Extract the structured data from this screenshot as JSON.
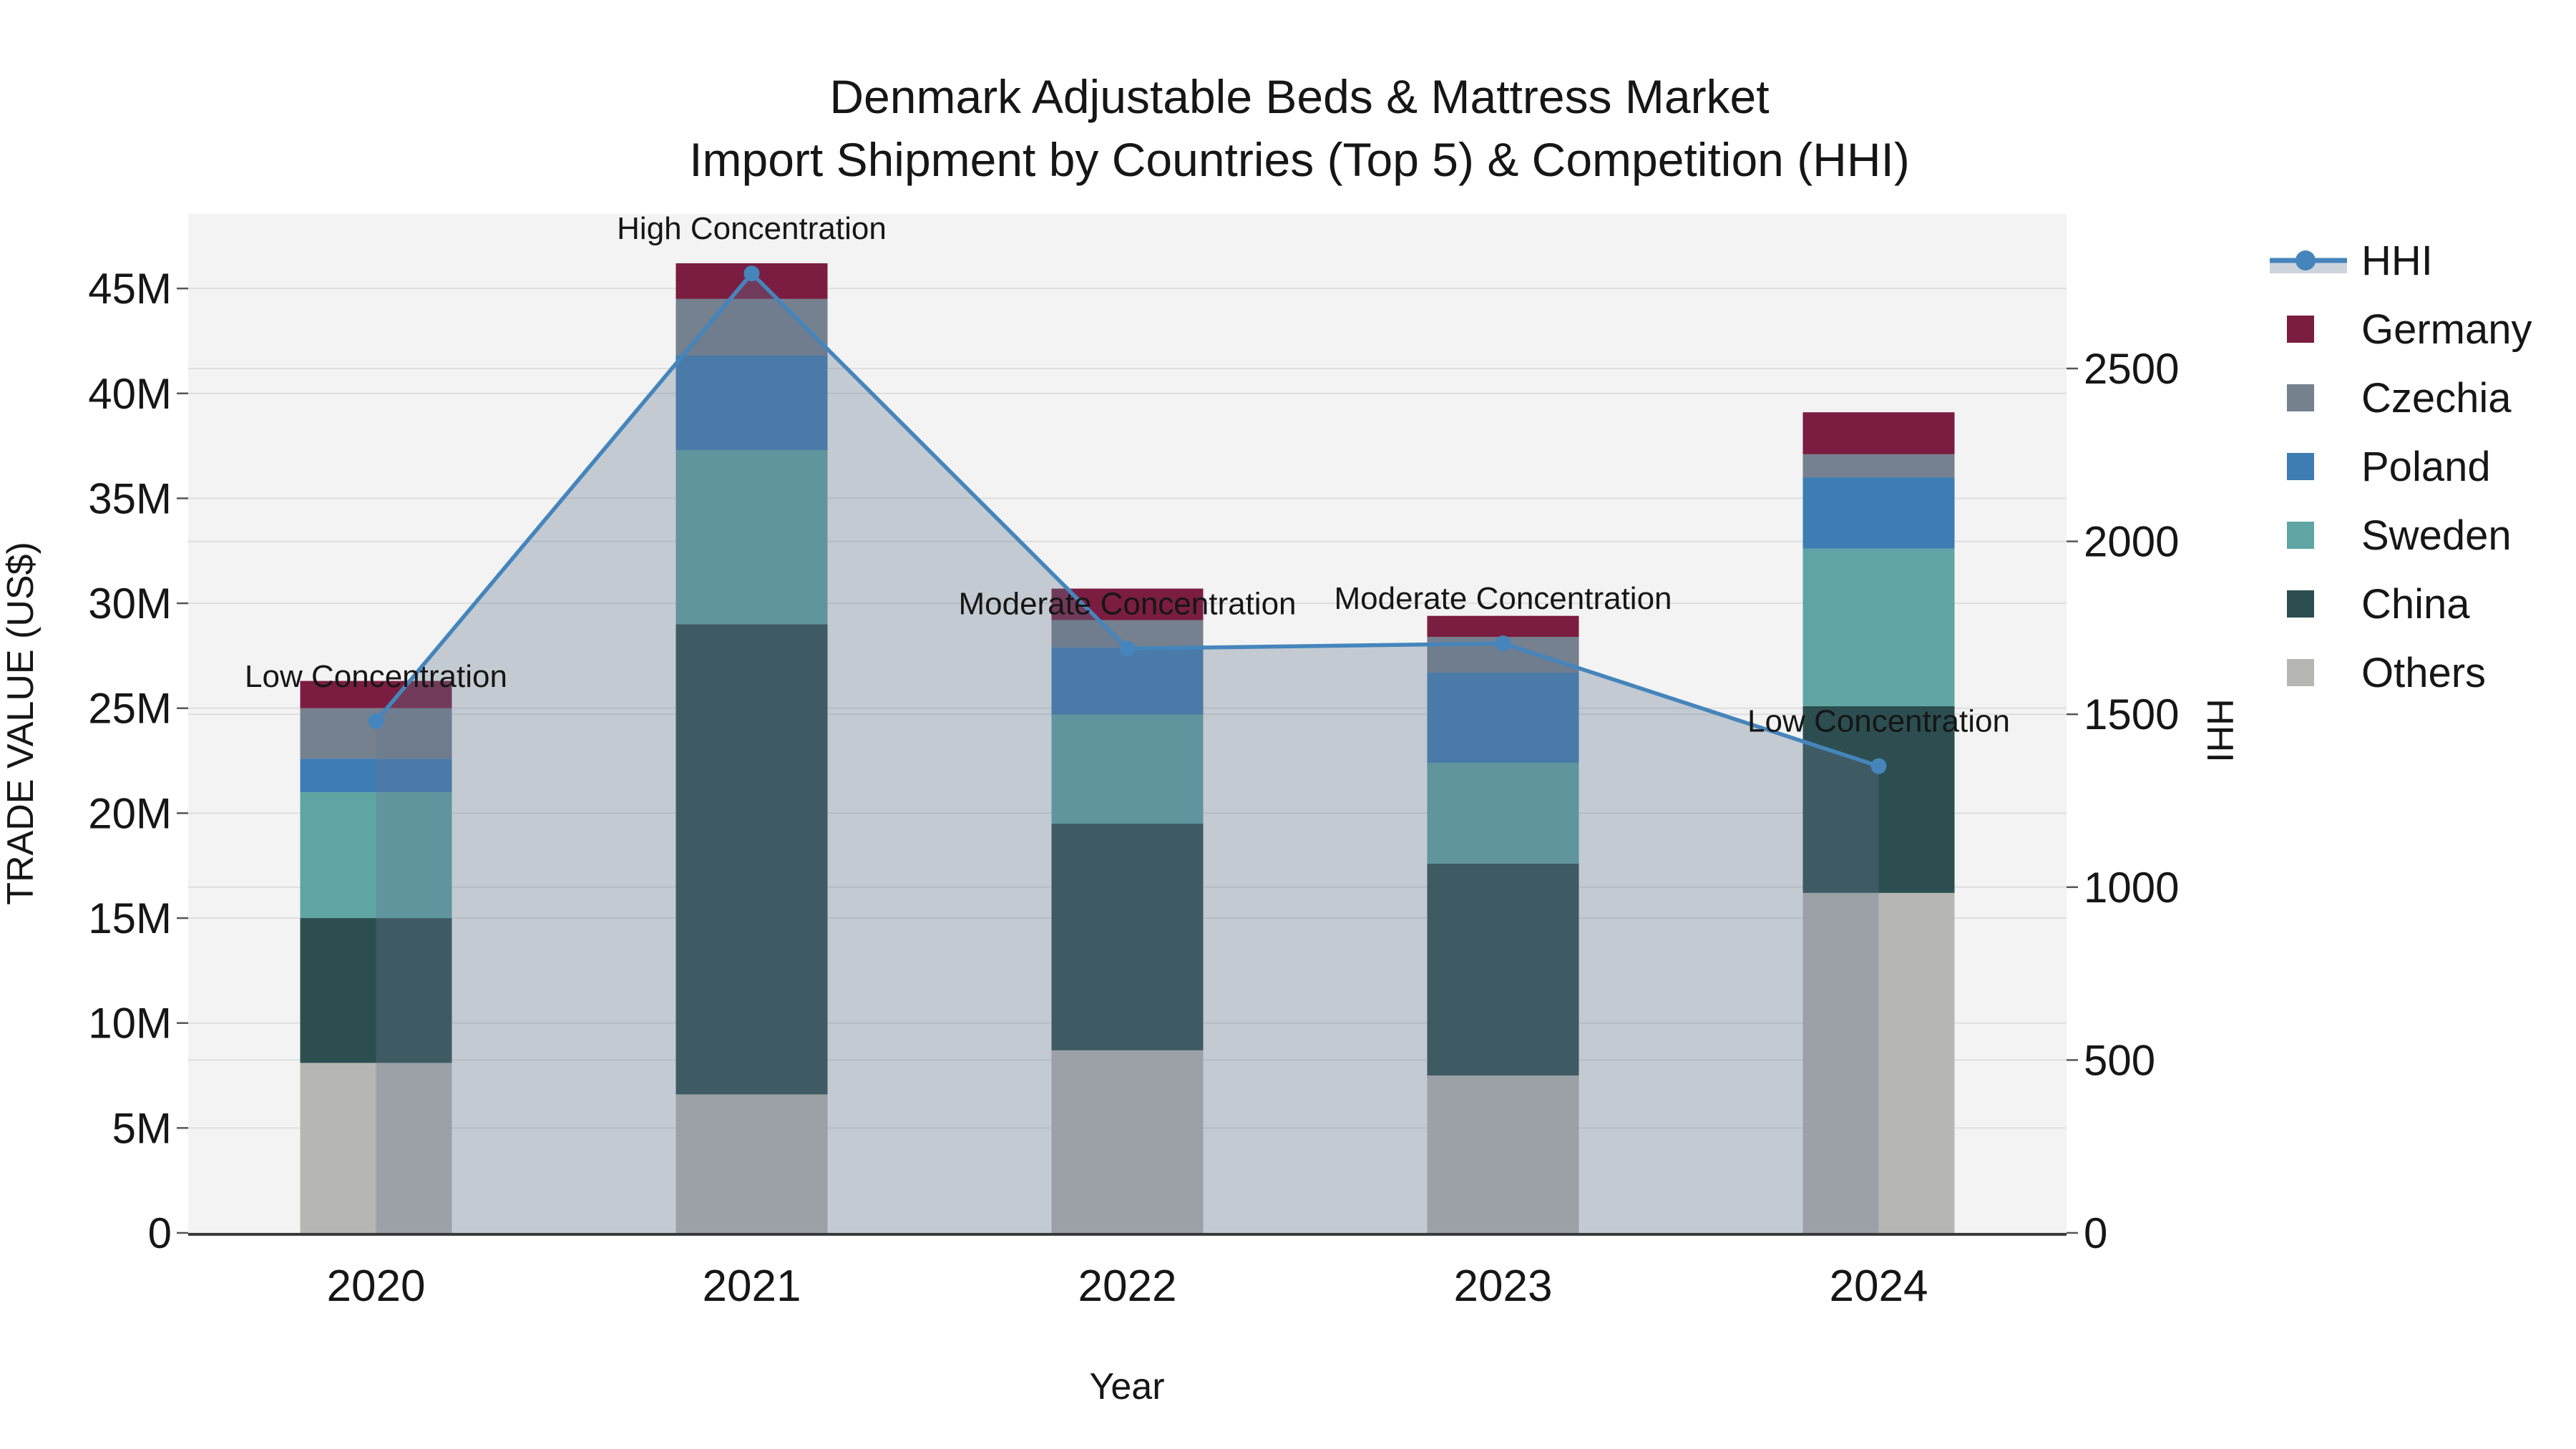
{
  "title": {
    "line1": "Denmark Adjustable Beds & Mattress Market",
    "line2": "Import Shipment by Countries (Top 5) & Competition (HHI)"
  },
  "axes": {
    "x": {
      "title": "Year",
      "ticks": [
        "2020",
        "2021",
        "2022",
        "2023",
        "2024"
      ]
    },
    "y_left": {
      "title": "TRADE VALUE (US$)",
      "tick_labels": [
        "0",
        "5M",
        "10M",
        "15M",
        "20M",
        "25M",
        "30M",
        "35M",
        "40M",
        "45M"
      ],
      "tick_values_musd": [
        0,
        5,
        10,
        15,
        20,
        25,
        30,
        35,
        40,
        45
      ],
      "max_musd": 48.55
    },
    "y_right": {
      "title": "HHI",
      "tick_labels": [
        "0",
        "500",
        "1000",
        "1500",
        "2000",
        "2500"
      ],
      "tick_values": [
        0,
        500,
        1000,
        1500,
        2000,
        2500
      ],
      "max": 2947
    }
  },
  "legend": {
    "position": "right",
    "items": [
      {
        "id": "hhi",
        "label": "HHI",
        "type": "line"
      },
      {
        "id": "germany",
        "label": "Germany",
        "type": "swatch"
      },
      {
        "id": "czechia",
        "label": "Czechia",
        "type": "swatch"
      },
      {
        "id": "poland",
        "label": "Poland",
        "type": "swatch"
      },
      {
        "id": "sweden",
        "label": "Sweden",
        "type": "swatch"
      },
      {
        "id": "china",
        "label": "China",
        "type": "swatch"
      },
      {
        "id": "others",
        "label": "Others",
        "type": "swatch"
      }
    ]
  },
  "colors": {
    "germany": "#7A1D40",
    "czechia": "#75818F",
    "poland": "#3E7CB4",
    "sweden": "#5FA5A4",
    "china": "#2C4E50",
    "others": "#B6B6B2",
    "hhi_line": "#4585BC",
    "hhi_fill_legend": "#CED4DC",
    "area_fill": "rgba(100,118,143,0.33)",
    "plot_bg": "#F3F3F3",
    "grid": "#DEDEDE",
    "axis_line": "#3A3A3A",
    "text": "#161616"
  },
  "chart_data": {
    "type": "bar+line",
    "categories": [
      "2020",
      "2021",
      "2022",
      "2023",
      "2024"
    ],
    "bar_unit": "million US$",
    "stack_order_bottom_to_top": [
      "Others",
      "China",
      "Sweden",
      "Poland",
      "Czechia",
      "Germany"
    ],
    "series": [
      {
        "id": "others",
        "name": "Others",
        "values": [
          8.1,
          6.6,
          8.7,
          7.5,
          16.2
        ]
      },
      {
        "id": "china",
        "name": "China",
        "values": [
          6.9,
          22.4,
          10.8,
          10.1,
          8.9
        ]
      },
      {
        "id": "sweden",
        "name": "Sweden",
        "values": [
          6.0,
          8.3,
          5.2,
          4.8,
          7.5
        ]
      },
      {
        "id": "poland",
        "name": "Poland",
        "values": [
          1.6,
          4.5,
          3.2,
          4.3,
          3.4
        ]
      },
      {
        "id": "czechia",
        "name": "Czechia",
        "values": [
          2.4,
          2.7,
          1.3,
          1.7,
          1.1
        ]
      },
      {
        "id": "germany",
        "name": "Germany",
        "values": [
          1.3,
          1.7,
          1.5,
          1.0,
          2.0
        ]
      }
    ],
    "bar_totals_musd": [
      26.3,
      46.2,
      30.7,
      29.4,
      39.1
    ],
    "line_series": {
      "id": "hhi",
      "name": "HHI",
      "axis": "right",
      "values": [
        1480,
        2775,
        1690,
        1705,
        1350
      ],
      "area_fill_to_zero": true
    },
    "annotations": [
      {
        "category": "2020",
        "text": "Low Concentration"
      },
      {
        "category": "2021",
        "text": "High Concentration"
      },
      {
        "category": "2022",
        "text": "Moderate Concentration"
      },
      {
        "category": "2023",
        "text": "Moderate Concentration"
      },
      {
        "category": "2024",
        "text": "Low Concentration"
      }
    ],
    "title": "Denmark Adjustable Beds & Mattress Market — Import Shipment by Countries (Top 5) & Competition (HHI)",
    "xlabel": "Year",
    "ylabel": "TRADE VALUE (US$)",
    "y2label": "HHI",
    "ylim": [
      0,
      48.55
    ],
    "y2lim": [
      0,
      2947
    ],
    "grid": true,
    "legend_position": "right"
  }
}
